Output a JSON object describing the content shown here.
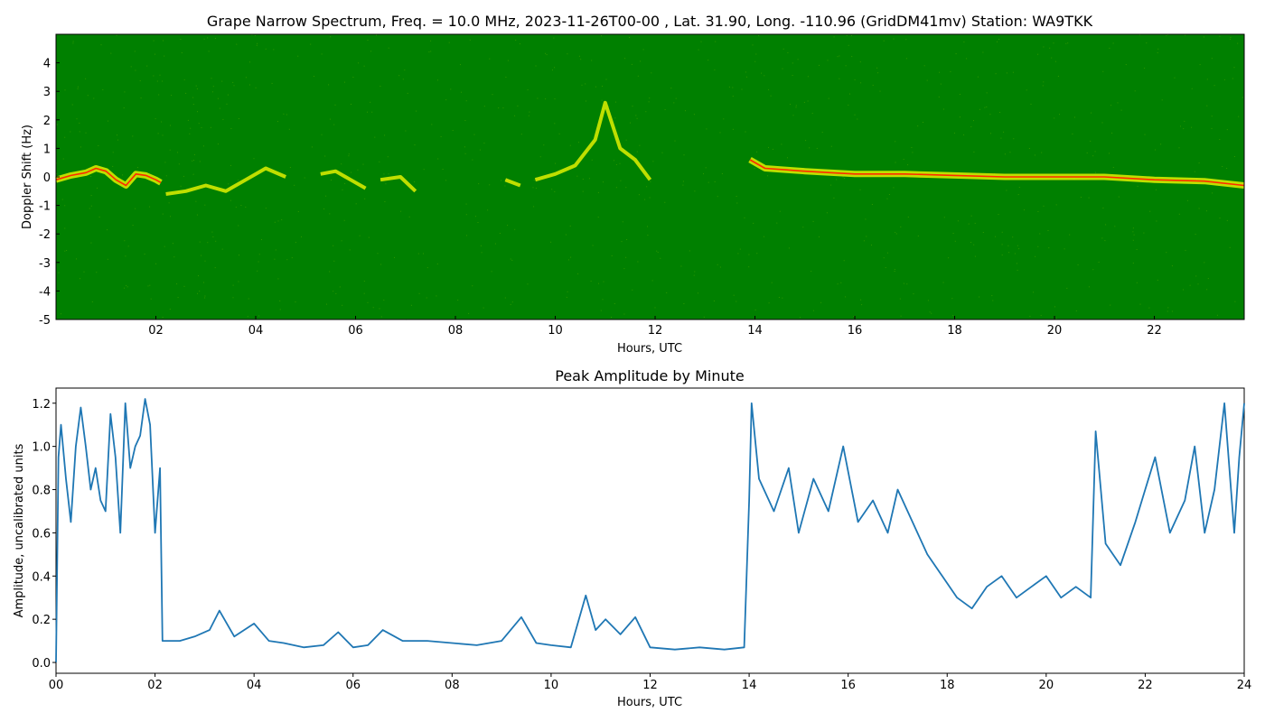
{
  "chart_data": [
    {
      "type": "heatmap",
      "title": "Grape Narrow Spectrum, Freq. = 10.0 MHz, 2023-11-26T00-00 , Lat.  31.90, Long. -110.96 (GridDM41mv) Station: WA9TKK",
      "xlabel": "Hours, UTC",
      "ylabel": "Doppler Shift (Hz)",
      "xlim": [
        0,
        23.8
      ],
      "ylim": [
        -5,
        5
      ],
      "x_tick_labels": [
        "02",
        "04",
        "06",
        "08",
        "10",
        "12",
        "14",
        "16",
        "18",
        "20",
        "22"
      ],
      "y_tick_labels": [
        "-5",
        "-4",
        "-3",
        "-2",
        "-1",
        "0",
        "1",
        "2",
        "3",
        "4"
      ],
      "colors": {
        "background": "#008000",
        "signal": "#ffff00",
        "peak": "#ff2a00"
      },
      "traces": [
        {
          "hours": [
            0.0,
            0.3,
            0.6,
            0.8,
            1.0,
            1.2,
            1.4,
            1.6,
            1.8,
            2.0,
            2.1
          ],
          "doppler": [
            -0.1,
            0.05,
            0.15,
            0.3,
            0.2,
            -0.1,
            -0.3,
            0.1,
            0.05,
            -0.1,
            -0.2
          ],
          "strength": "peak"
        },
        {
          "hours": [
            2.2,
            2.6,
            3.0,
            3.4,
            3.8,
            4.2,
            4.6
          ],
          "doppler": [
            -0.6,
            -0.5,
            -0.3,
            -0.5,
            -0.1,
            0.3,
            0.0
          ],
          "strength": "signal"
        },
        {
          "hours": [
            5.3,
            5.6,
            5.9,
            6.2
          ],
          "doppler": [
            0.1,
            0.2,
            -0.1,
            -0.4
          ],
          "strength": "signal"
        },
        {
          "hours": [
            6.5,
            6.9,
            7.2
          ],
          "doppler": [
            -0.1,
            0.0,
            -0.5
          ],
          "strength": "signal"
        },
        {
          "hours": [
            9.0,
            9.3
          ],
          "doppler": [
            -0.1,
            -0.3
          ],
          "strength": "signal"
        },
        {
          "hours": [
            9.6,
            10.0,
            10.4,
            10.8,
            11.0,
            11.3,
            11.6,
            11.9
          ],
          "doppler": [
            -0.1,
            0.1,
            0.4,
            1.3,
            2.6,
            1.0,
            0.6,
            -0.1
          ],
          "strength": "signal"
        },
        {
          "hours": [
            13.9,
            14.2,
            14.6,
            15.0,
            15.5,
            16.0,
            17.0,
            18.0,
            19.0,
            20.0,
            21.0,
            22.0,
            23.0,
            23.8
          ],
          "doppler": [
            0.6,
            0.3,
            0.25,
            0.2,
            0.15,
            0.1,
            0.1,
            0.05,
            0.0,
            0.0,
            0.0,
            -0.1,
            -0.15,
            -0.3
          ],
          "strength": "peak"
        }
      ]
    },
    {
      "type": "line",
      "title": "Peak Amplitude by Minute",
      "xlabel": "Hours, UTC",
      "ylabel": "Amplitude, uncalibrated units",
      "xlim": [
        0,
        24
      ],
      "ylim": [
        -0.05,
        1.27
      ],
      "x_tick_labels": [
        "00",
        "02",
        "04",
        "06",
        "08",
        "10",
        "12",
        "14",
        "16",
        "18",
        "20",
        "22",
        "24"
      ],
      "y_tick_labels": [
        "0.0",
        "0.2",
        "0.4",
        "0.6",
        "0.8",
        "1.0",
        "1.2"
      ],
      "colors": {
        "line": "#1f77b4"
      },
      "series": [
        {
          "x": [
            0.0,
            0.05,
            0.1,
            0.2,
            0.3,
            0.4,
            0.5,
            0.6,
            0.7,
            0.8,
            0.9,
            1.0,
            1.1,
            1.2,
            1.3,
            1.4,
            1.5,
            1.6,
            1.7,
            1.8,
            1.9,
            2.0,
            2.1,
            2.15,
            2.2,
            2.5,
            2.8,
            3.1,
            3.3,
            3.6,
            4.0,
            4.3,
            4.6,
            5.0,
            5.4,
            5.7,
            6.0,
            6.3,
            6.6,
            7.0,
            7.5,
            8.0,
            8.5,
            9.0,
            9.4,
            9.7,
            10.0,
            10.4,
            10.7,
            10.9,
            11.1,
            11.4,
            11.7,
            12.0,
            12.5,
            13.0,
            13.5,
            13.9,
            14.0,
            14.05,
            14.2,
            14.5,
            14.8,
            15.0,
            15.3,
            15.6,
            15.9,
            16.2,
            16.5,
            16.8,
            17.0,
            17.3,
            17.6,
            17.9,
            18.2,
            18.5,
            18.8,
            19.1,
            19.4,
            19.7,
            20.0,
            20.3,
            20.6,
            20.9,
            21.0,
            21.2,
            21.5,
            21.8,
            22.0,
            22.2,
            22.5,
            22.8,
            23.0,
            23.2,
            23.4,
            23.6,
            23.8,
            23.9,
            24.0
          ],
          "y": [
            0.0,
            0.95,
            1.1,
            0.85,
            0.65,
            1.0,
            1.18,
            1.0,
            0.8,
            0.9,
            0.75,
            0.7,
            1.15,
            0.95,
            0.6,
            1.2,
            0.9,
            1.0,
            1.05,
            1.22,
            1.1,
            0.6,
            0.9,
            0.1,
            0.1,
            0.1,
            0.12,
            0.15,
            0.24,
            0.12,
            0.18,
            0.1,
            0.09,
            0.07,
            0.08,
            0.14,
            0.07,
            0.08,
            0.15,
            0.1,
            0.1,
            0.09,
            0.08,
            0.1,
            0.21,
            0.09,
            0.08,
            0.07,
            0.31,
            0.15,
            0.2,
            0.13,
            0.21,
            0.07,
            0.06,
            0.07,
            0.06,
            0.07,
            0.75,
            1.2,
            0.85,
            0.7,
            0.9,
            0.6,
            0.85,
            0.7,
            1.0,
            0.65,
            0.75,
            0.6,
            0.8,
            0.65,
            0.5,
            0.4,
            0.3,
            0.25,
            0.35,
            0.4,
            0.3,
            0.35,
            0.4,
            0.3,
            0.35,
            0.3,
            1.07,
            0.55,
            0.45,
            0.65,
            0.8,
            0.95,
            0.6,
            0.75,
            1.0,
            0.6,
            0.8,
            1.2,
            0.6,
            0.95,
            1.2
          ]
        }
      ]
    }
  ]
}
